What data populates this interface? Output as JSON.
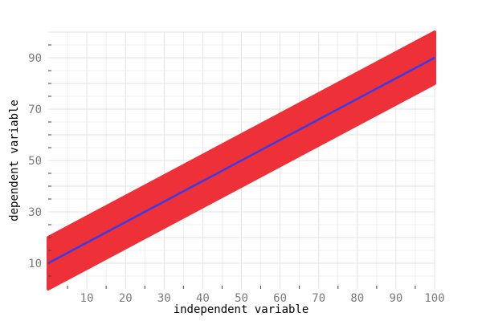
{
  "chart_data": {
    "type": "area",
    "title": "",
    "xlabel": "independent variable",
    "ylabel": "dependent variable",
    "xlim": [
      0,
      100
    ],
    "ylim": [
      0,
      100
    ],
    "xticks": [
      10,
      20,
      30,
      40,
      50,
      60,
      70,
      80,
      90,
      100
    ],
    "yticks": [
      10,
      30,
      50,
      70,
      90
    ],
    "grid": true,
    "series": [
      {
        "kind": "band",
        "x": [
          0,
          100
        ],
        "lower": [
          0,
          80
        ],
        "upper": [
          20,
          100
        ],
        "color": "#ee3038"
      },
      {
        "kind": "line",
        "x": [
          0,
          100
        ],
        "y": [
          10,
          90
        ],
        "color": "#3a3ae8"
      }
    ]
  }
}
